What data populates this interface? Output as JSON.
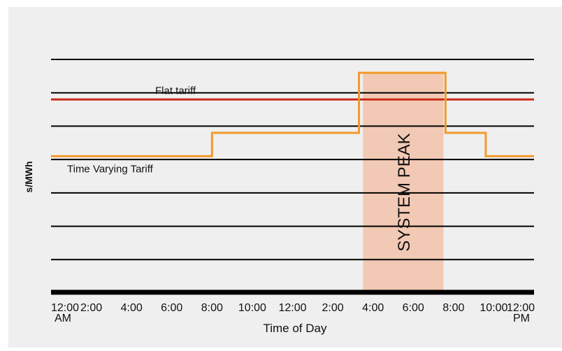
{
  "chart_data": {
    "type": "line",
    "title": "",
    "xlabel": "Time of Day",
    "ylabel": "s/MWh",
    "x_ticks": [
      "12:00",
      "2:00",
      "4:00",
      "6:00",
      "8:00",
      "10:00",
      "12:00",
      "2:00",
      "4:00",
      "6:00",
      "8:00",
      "10:00",
      "12:00"
    ],
    "x_tick_sublabels": [
      "AM",
      "",
      "",
      "",
      "",
      "",
      "",
      "",
      "",
      "",
      "",
      "",
      "PM"
    ],
    "xlim": [
      0,
      24
    ],
    "ylim": [
      0,
      7
    ],
    "grid": true,
    "shaded_region": {
      "label": "SYSTEM PEAK",
      "x": [
        15.5,
        19.5
      ],
      "color": "#f2c9b4"
    },
    "series": [
      {
        "name": "Flat tariff",
        "color": "#cc2a1a",
        "x": [
          0,
          24
        ],
        "y": [
          5.8,
          5.8
        ]
      },
      {
        "name": "Time Varying Tariff",
        "color": "#f39a2b",
        "x": [
          0,
          8,
          8,
          15.3,
          15.3,
          19.6,
          19.6,
          21.6,
          21.6,
          24
        ],
        "y": [
          4.1,
          4.1,
          4.8,
          4.8,
          6.6,
          6.6,
          4.8,
          4.8,
          4.1,
          4.1
        ]
      }
    ]
  }
}
